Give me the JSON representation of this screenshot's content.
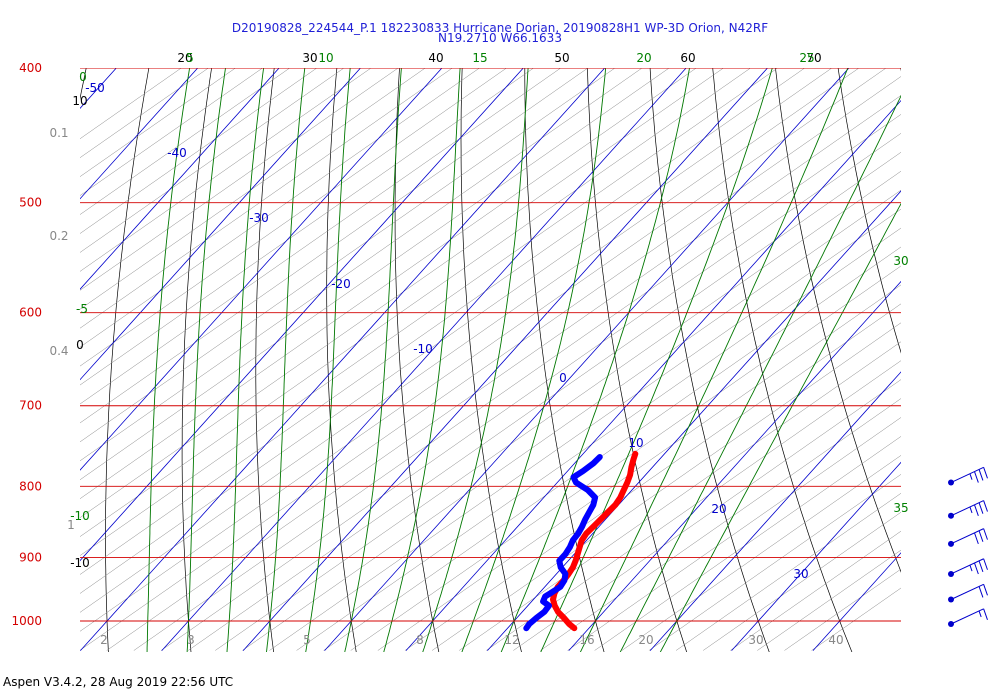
{
  "header": {
    "title_line1": "D20190828_224544_P.1 182230833 Hurricane Dorian, 20190828H1 WP-3D Orion, N42RF",
    "title_line2": "N19.2710 W66.1633"
  },
  "footer": {
    "text": "Aspen V3.4.2, 28 Aug 2019  22:56 UTC"
  },
  "colors": {
    "isobar": "#d40000",
    "isotherm": "#0000cc",
    "dry_adiabat": "#777777",
    "moist_adiabat": "#007700",
    "mixing_ratio": "#888888",
    "temperature": "#ff0000",
    "dewpoint": "#0000ff",
    "label_black": "#000000",
    "label_green": "#008000",
    "label_grey": "#888888",
    "label_blue": "#0000cc"
  },
  "chart_data": {
    "type": "line",
    "diagram": "skew-T log-p",
    "pressure_levels": [
      "400",
      "500",
      "600",
      "700",
      "800",
      "900",
      "1000"
    ],
    "isotherm_labels": [
      "-50",
      "-40",
      "-30",
      "-20",
      "-10",
      "0",
      "10",
      "20",
      "30"
    ],
    "top_theta_labels": [
      "20",
      "30",
      "40",
      "50",
      "60",
      "70"
    ],
    "top_thetae_labels": [
      "5",
      "10",
      "15",
      "20",
      "25"
    ],
    "left_wetbulb_labels": [
      "0",
      "-5",
      "-10"
    ],
    "right_wetbulb_labels": [
      "30",
      "35"
    ],
    "left_theta_labels": [
      "10",
      "0",
      "-10"
    ],
    "left_mixing_labels": [
      "0.1",
      "0.2",
      "0.4",
      "1"
    ],
    "bottom_mixing_labels": [
      "2",
      "3",
      "5",
      "8",
      "12",
      "16",
      "20",
      "30",
      "40"
    ],
    "series": [
      {
        "name": "temperature",
        "points": [
          [
            1012,
            28.2
          ],
          [
            1005,
            27.1
          ],
          [
            995,
            25.8
          ],
          [
            985,
            24.4
          ],
          [
            975,
            23.3
          ],
          [
            965,
            22.4
          ],
          [
            955,
            21.9
          ],
          [
            945,
            21.6
          ],
          [
            935,
            21.6
          ],
          [
            925,
            21.5
          ],
          [
            915,
            21.3
          ],
          [
            905,
            20.9
          ],
          [
            895,
            20.4
          ],
          [
            885,
            19.9
          ],
          [
            875,
            19.4
          ],
          [
            865,
            19.2
          ],
          [
            855,
            19.3
          ],
          [
            845,
            19.4
          ],
          [
            835,
            19.5
          ],
          [
            825,
            19.6
          ],
          [
            815,
            19.4
          ],
          [
            805,
            19.0
          ],
          [
            795,
            18.6
          ],
          [
            785,
            18.1
          ],
          [
            775,
            17.4
          ],
          [
            765,
            16.8
          ],
          [
            758,
            16.4
          ]
        ]
      },
      {
        "name": "dewpoint",
        "points": [
          [
            1012,
            22.3
          ],
          [
            1005,
            22.2
          ],
          [
            995,
            22.4
          ],
          [
            985,
            22.7
          ],
          [
            975,
            22.6
          ],
          [
            968,
            21.4
          ],
          [
            960,
            21.1
          ],
          [
            955,
            21.4
          ],
          [
            945,
            21.9
          ],
          [
            935,
            21.7
          ],
          [
            925,
            21.1
          ],
          [
            915,
            19.8
          ],
          [
            905,
            18.9
          ],
          [
            895,
            18.9
          ],
          [
            885,
            18.7
          ],
          [
            875,
            18.3
          ],
          [
            865,
            18.2
          ],
          [
            855,
            17.9
          ],
          [
            845,
            17.5
          ],
          [
            835,
            17.2
          ],
          [
            825,
            16.9
          ],
          [
            815,
            16.3
          ],
          [
            805,
            14.6
          ],
          [
            795,
            12.3
          ],
          [
            788,
            11.4
          ],
          [
            780,
            11.9
          ],
          [
            770,
            12.3
          ],
          [
            762,
            12.4
          ]
        ]
      }
    ],
    "wind_barbs": [
      {
        "pressure": 795,
        "speed_kt": 35
      },
      {
        "pressure": 840,
        "speed_kt": 35
      },
      {
        "pressure": 880,
        "speed_kt": 30
      },
      {
        "pressure": 925,
        "speed_kt": 35
      },
      {
        "pressure": 965,
        "speed_kt": 20
      },
      {
        "pressure": 1008,
        "speed_kt": 15
      }
    ]
  }
}
